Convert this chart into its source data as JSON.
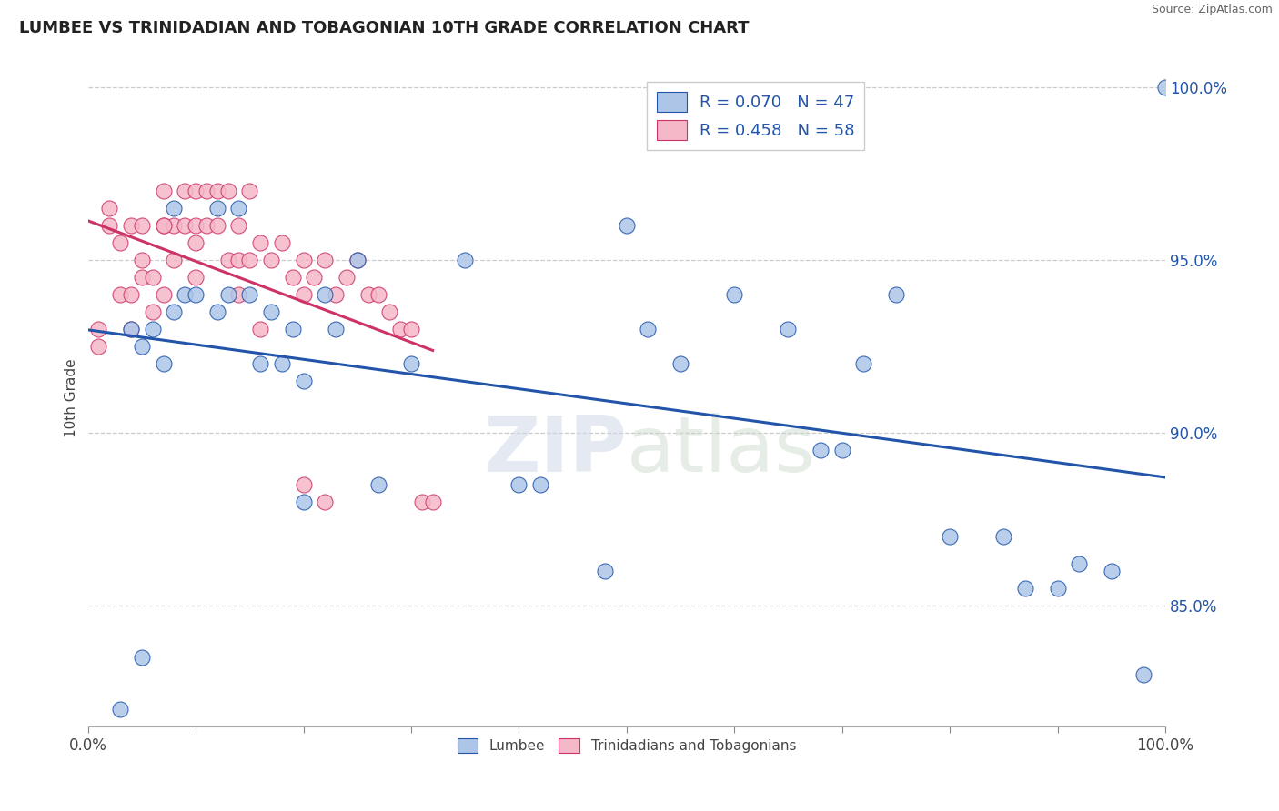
{
  "title": "LUMBEE VS TRINIDADIAN AND TOBAGONIAN 10TH GRADE CORRELATION CHART",
  "source": "Source: ZipAtlas.com",
  "ylabel": "10th Grade",
  "R_blue": 0.07,
  "N_blue": 47,
  "R_pink": 0.458,
  "N_pink": 58,
  "xlim": [
    0.0,
    1.0
  ],
  "ylim": [
    0.815,
    1.005
  ],
  "yticks": [
    0.85,
    0.9,
    0.95,
    1.0
  ],
  "ytick_labels": [
    "85.0%",
    "90.0%",
    "95.0%",
    "100.0%"
  ],
  "blue_color": "#adc6e8",
  "pink_color": "#f5b8c8",
  "blue_line_color": "#2255aa",
  "pink_line_color": "#cc3366",
  "grid_color": "#cccccc",
  "blue_x": [
    0.03,
    0.04,
    0.05,
    0.06,
    0.07,
    0.08,
    0.09,
    0.1,
    0.12,
    0.13,
    0.14,
    0.15,
    0.16,
    0.17,
    0.18,
    0.19,
    0.2,
    0.22,
    0.23,
    0.25,
    0.27,
    0.3,
    0.35,
    0.4,
    0.42,
    0.48,
    0.5,
    0.52,
    0.55,
    0.6,
    0.65,
    0.68,
    0.7,
    0.72,
    0.75,
    0.8,
    0.85,
    0.87,
    0.9,
    0.92,
    0.95,
    0.98,
    1.0,
    0.05,
    0.08,
    0.12,
    0.2
  ],
  "blue_y": [
    0.82,
    0.93,
    0.925,
    0.93,
    0.92,
    0.935,
    0.94,
    0.94,
    0.935,
    0.94,
    0.965,
    0.94,
    0.92,
    0.935,
    0.92,
    0.93,
    0.915,
    0.94,
    0.93,
    0.95,
    0.885,
    0.92,
    0.95,
    0.885,
    0.885,
    0.86,
    0.96,
    0.93,
    0.92,
    0.94,
    0.93,
    0.895,
    0.895,
    0.92,
    0.94,
    0.87,
    0.87,
    0.855,
    0.855,
    0.862,
    0.86,
    0.83,
    1.0,
    0.835,
    0.965,
    0.965,
    0.88
  ],
  "pink_x": [
    0.01,
    0.01,
    0.02,
    0.02,
    0.03,
    0.03,
    0.04,
    0.04,
    0.04,
    0.05,
    0.05,
    0.05,
    0.06,
    0.06,
    0.07,
    0.07,
    0.07,
    0.08,
    0.08,
    0.09,
    0.09,
    0.1,
    0.1,
    0.1,
    0.11,
    0.11,
    0.12,
    0.12,
    0.13,
    0.13,
    0.14,
    0.14,
    0.15,
    0.15,
    0.16,
    0.17,
    0.18,
    0.19,
    0.2,
    0.2,
    0.21,
    0.22,
    0.23,
    0.24,
    0.25,
    0.26,
    0.27,
    0.28,
    0.29,
    0.3,
    0.31,
    0.32,
    0.14,
    0.16,
    0.07,
    0.1,
    0.2,
    0.22
  ],
  "pink_y": [
    0.93,
    0.925,
    0.965,
    0.96,
    0.955,
    0.94,
    0.96,
    0.94,
    0.93,
    0.96,
    0.95,
    0.945,
    0.945,
    0.935,
    0.97,
    0.96,
    0.94,
    0.96,
    0.95,
    0.97,
    0.96,
    0.97,
    0.96,
    0.955,
    0.97,
    0.96,
    0.97,
    0.96,
    0.97,
    0.95,
    0.96,
    0.95,
    0.97,
    0.95,
    0.955,
    0.95,
    0.955,
    0.945,
    0.95,
    0.94,
    0.945,
    0.95,
    0.94,
    0.945,
    0.95,
    0.94,
    0.94,
    0.935,
    0.93,
    0.93,
    0.88,
    0.88,
    0.94,
    0.93,
    0.96,
    0.945,
    0.885,
    0.88
  ]
}
